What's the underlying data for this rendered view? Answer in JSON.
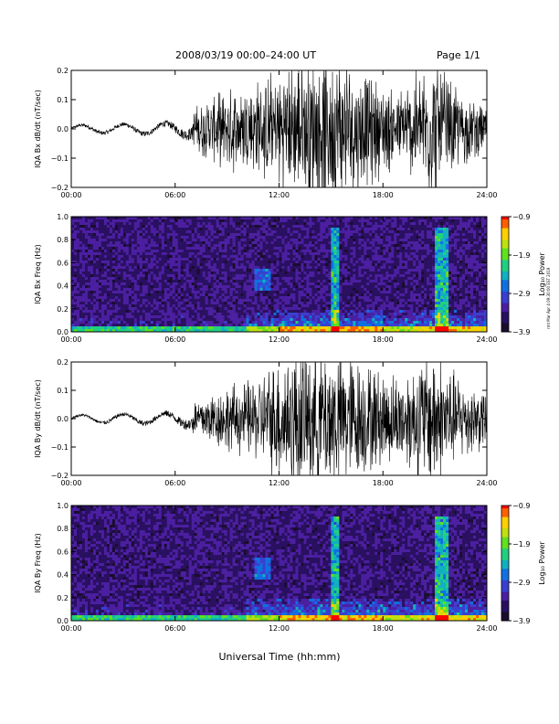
{
  "header": {
    "title": "2008/03/19   00:00–24:00 UT",
    "page": "Page 1/1"
  },
  "footer": {
    "xlabel": "Universal Time (hh:mm)"
  },
  "side_note": "rmt Mar Apr 4 09:30:00 EST 2019",
  "colors": {
    "trace": "#000000",
    "axis": "#000000",
    "colormap": [
      "#1a0d2e",
      "#2a1060",
      "#4b1fa0",
      "#3a3fd0",
      "#1070e0",
      "#10b0c0",
      "#20d080",
      "#60e020",
      "#c0e010",
      "#ffd000",
      "#ff6000",
      "#ff0000"
    ]
  },
  "chart_data": [
    {
      "type": "line",
      "id": "bx-wave",
      "ylabel": "IQA Bx dB/dt (nT/sec)",
      "xlim": [
        0,
        24
      ],
      "ylim": [
        -0.2,
        0.2
      ],
      "x_ticks": [
        "00:00",
        "06:00",
        "12:00",
        "18:00",
        "24:00"
      ],
      "y_ticks": [
        "0.2",
        "0.1",
        "0.0",
        "−0.1",
        "−0.2"
      ],
      "series": [
        {
          "x": [
            0,
            1,
            2,
            3,
            4,
            5,
            6,
            7,
            8,
            9,
            10,
            11,
            12,
            13,
            14,
            15,
            16,
            17,
            18,
            19,
            20,
            21,
            22,
            23,
            24
          ],
          "amplitude": [
            0.01,
            0.015,
            0.015,
            0.015,
            0.02,
            0.02,
            0.03,
            0.05,
            0.08,
            0.1,
            0.12,
            0.13,
            0.15,
            0.18,
            0.2,
            0.2,
            0.18,
            0.15,
            0.12,
            0.1,
            0.15,
            0.2,
            0.12,
            0.08,
            0.06
          ]
        }
      ]
    },
    {
      "type": "heatmap",
      "id": "bx-spec",
      "ylabel": "IQA Bx Freq (Hz)",
      "xlim": [
        0,
        24
      ],
      "ylim": [
        0,
        1
      ],
      "x_ticks": [
        "00:00",
        "06:00",
        "12:00",
        "18:00",
        "24:00"
      ],
      "y_ticks": [
        "1.0",
        "0.8",
        "0.6",
        "0.4",
        "0.2",
        "0.0"
      ],
      "colorbar": {
        "label": "Log₁₀ Power",
        "ticks": [
          "−0.9",
          "−1.9",
          "−2.9",
          "−3.9"
        ],
        "range": [
          -3.9,
          -0.9
        ]
      }
    },
    {
      "type": "line",
      "id": "by-wave",
      "ylabel": "IQA By dB/dt (nT/sec)",
      "xlim": [
        0,
        24
      ],
      "ylim": [
        -0.2,
        0.2
      ],
      "x_ticks": [
        "00:00",
        "06:00",
        "12:00",
        "18:00",
        "24:00"
      ],
      "y_ticks": [
        "0.2",
        "0.1",
        "0.0",
        "−0.1",
        "−0.2"
      ],
      "series": [
        {
          "x": [
            0,
            1,
            2,
            3,
            4,
            5,
            6,
            7,
            8,
            9,
            10,
            11,
            12,
            13,
            14,
            15,
            16,
            17,
            18,
            19,
            20,
            21,
            22,
            23,
            24
          ],
          "amplitude": [
            0.01,
            0.01,
            0.015,
            0.015,
            0.02,
            0.02,
            0.03,
            0.05,
            0.07,
            0.09,
            0.1,
            0.12,
            0.17,
            0.2,
            0.2,
            0.2,
            0.18,
            0.15,
            0.13,
            0.12,
            0.16,
            0.2,
            0.13,
            0.1,
            0.08
          ]
        }
      ]
    },
    {
      "type": "heatmap",
      "id": "by-spec",
      "ylabel": "IQA By Freq (Hz)",
      "xlim": [
        0,
        24
      ],
      "ylim": [
        0,
        1
      ],
      "x_ticks": [
        "00:00",
        "06:00",
        "12:00",
        "18:00",
        "24:00"
      ],
      "y_ticks": [
        "1.0",
        "0.8",
        "0.6",
        "0.4",
        "0.2",
        "0.0"
      ],
      "colorbar": {
        "label": "Log₁₀ Power",
        "ticks": [
          "−0.9",
          "−1.9",
          "−2.9",
          "−3.9"
        ],
        "range": [
          -3.9,
          -0.9
        ]
      }
    }
  ]
}
